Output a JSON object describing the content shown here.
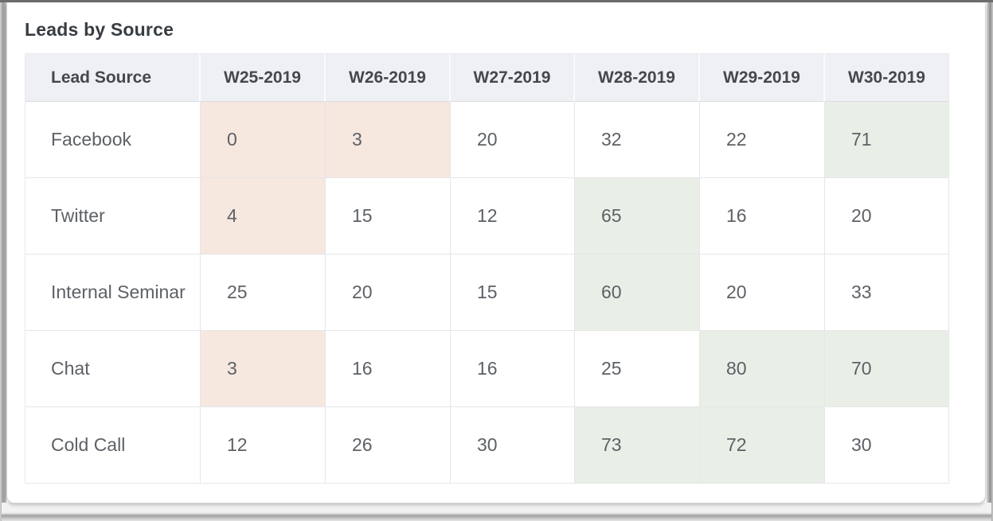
{
  "widget": {
    "title": "Leads by Source"
  },
  "colors": {
    "low_cell_bg": "#f6e7df",
    "high_cell_bg": "#e9efe7",
    "header_bg": "#eef0f4"
  },
  "table": {
    "columns": [
      "Lead Source",
      "W25-2019",
      "W26-2019",
      "W27-2019",
      "W28-2019",
      "W29-2019",
      "W30-2019"
    ],
    "rows": [
      {
        "source": "Facebook",
        "values": [
          0,
          3,
          20,
          32,
          22,
          71
        ],
        "highlights": [
          "low",
          "low",
          "none",
          "none",
          "none",
          "high"
        ]
      },
      {
        "source": "Twitter",
        "values": [
          4,
          15,
          12,
          65,
          16,
          20
        ],
        "highlights": [
          "low",
          "none",
          "none",
          "high",
          "none",
          "none"
        ]
      },
      {
        "source": "Internal Seminar",
        "values": [
          25,
          20,
          15,
          60,
          20,
          33
        ],
        "highlights": [
          "none",
          "none",
          "none",
          "high",
          "none",
          "none"
        ]
      },
      {
        "source": "Chat",
        "values": [
          3,
          16,
          16,
          25,
          80,
          70
        ],
        "highlights": [
          "low",
          "none",
          "none",
          "none",
          "high",
          "high"
        ]
      },
      {
        "source": "Cold Call",
        "values": [
          12,
          26,
          30,
          73,
          72,
          30
        ],
        "highlights": [
          "none",
          "none",
          "none",
          "high",
          "high",
          "none"
        ]
      }
    ]
  },
  "chart_data": {
    "type": "table",
    "title": "Leads by Source",
    "categories": [
      "W25-2019",
      "W26-2019",
      "W27-2019",
      "W28-2019",
      "W29-2019",
      "W30-2019"
    ],
    "series": [
      {
        "name": "Facebook",
        "values": [
          0,
          3,
          20,
          32,
          22,
          71
        ]
      },
      {
        "name": "Twitter",
        "values": [
          4,
          15,
          12,
          65,
          16,
          20
        ]
      },
      {
        "name": "Internal Seminar",
        "values": [
          25,
          20,
          15,
          60,
          20,
          33
        ]
      },
      {
        "name": "Chat",
        "values": [
          3,
          16,
          16,
          25,
          80,
          70
        ]
      },
      {
        "name": "Cold Call",
        "values": [
          12,
          26,
          30,
          73,
          72,
          30
        ]
      }
    ]
  }
}
